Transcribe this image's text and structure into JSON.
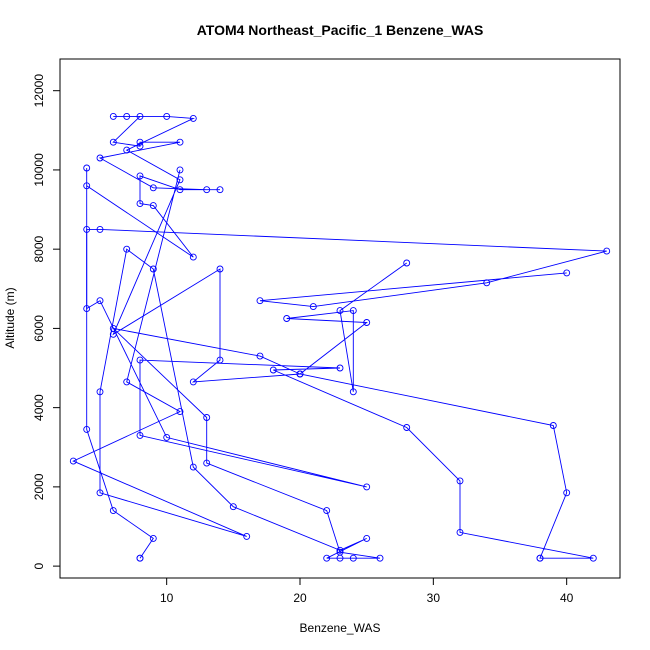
{
  "chart_data": {
    "type": "line",
    "title": "ATOM4 Northeast_Pacific_1 Benzene_WAS",
    "xlabel": "Benzene_WAS",
    "ylabel": "Altitude (m)",
    "xlim": [
      2,
      44
    ],
    "ylim": [
      -300,
      12800
    ],
    "x_ticks": [
      10,
      20,
      30,
      40
    ],
    "y_ticks": [
      0,
      2000,
      4000,
      6000,
      8000,
      10000,
      12000
    ],
    "grid": false,
    "line_color": "#0000ff",
    "marker": "open-circle",
    "series": [
      {
        "points": [
          [
            8,
            200
          ],
          [
            8,
            200
          ],
          [
            9,
            700
          ],
          [
            6,
            1400
          ],
          [
            4,
            3450
          ],
          [
            4,
            8500
          ],
          [
            5,
            8500
          ],
          [
            43,
            7950
          ],
          [
            34,
            7150
          ],
          [
            21,
            6550
          ],
          [
            17,
            6700
          ],
          [
            40,
            7400
          ]
        ]
      },
      {
        "points": [
          [
            28,
            7650
          ],
          [
            23,
            6450
          ],
          [
            24,
            4400
          ],
          [
            24,
            6450
          ],
          [
            19,
            6250
          ],
          [
            25,
            6150
          ],
          [
            20,
            4850
          ],
          [
            12,
            4650
          ],
          [
            14,
            5200
          ],
          [
            14,
            7500
          ],
          [
            6,
            5850
          ],
          [
            11,
            9750
          ],
          [
            7,
            10500
          ],
          [
            12,
            11300
          ],
          [
            10,
            11350
          ],
          [
            6,
            11350
          ],
          [
            7,
            11350
          ],
          [
            8,
            11350
          ],
          [
            6,
            10700
          ],
          [
            8,
            10600
          ],
          [
            8,
            10700
          ],
          [
            11,
            10700
          ],
          [
            5,
            10300
          ],
          [
            9,
            9550
          ],
          [
            13,
            9500
          ],
          [
            14,
            9500
          ],
          [
            11,
            9500
          ],
          [
            8,
            9850
          ],
          [
            8,
            9150
          ],
          [
            9,
            9100
          ],
          [
            12,
            7800
          ],
          [
            4,
            9600
          ],
          [
            4,
            10050
          ],
          [
            4,
            6500
          ],
          [
            5,
            6700
          ],
          [
            10,
            3250
          ],
          [
            25,
            2000
          ],
          [
            8,
            3300
          ],
          [
            8,
            5200
          ],
          [
            23,
            5000
          ],
          [
            18,
            4950
          ],
          [
            28,
            3500
          ],
          [
            32,
            2150
          ],
          [
            32,
            850
          ],
          [
            42,
            200
          ],
          [
            38,
            200
          ],
          [
            38,
            200
          ],
          [
            40,
            1850
          ],
          [
            39,
            3550
          ],
          [
            20,
            4850
          ],
          [
            17,
            5300
          ],
          [
            6,
            6000
          ],
          [
            13,
            3750
          ],
          [
            13,
            2600
          ],
          [
            22,
            1400
          ],
          [
            23,
            350
          ],
          [
            26,
            200
          ],
          [
            23,
            200
          ],
          [
            24,
            200
          ],
          [
            22,
            200
          ],
          [
            25,
            700
          ],
          [
            23,
            400
          ],
          [
            15,
            1500
          ],
          [
            12,
            2500
          ],
          [
            9,
            7500
          ],
          [
            7,
            8000
          ],
          [
            5,
            4400
          ],
          [
            5,
            1850
          ],
          [
            16,
            750
          ],
          [
            3,
            2650
          ],
          [
            11,
            3900
          ],
          [
            7,
            4650
          ],
          [
            11,
            10000
          ]
        ]
      }
    ]
  }
}
